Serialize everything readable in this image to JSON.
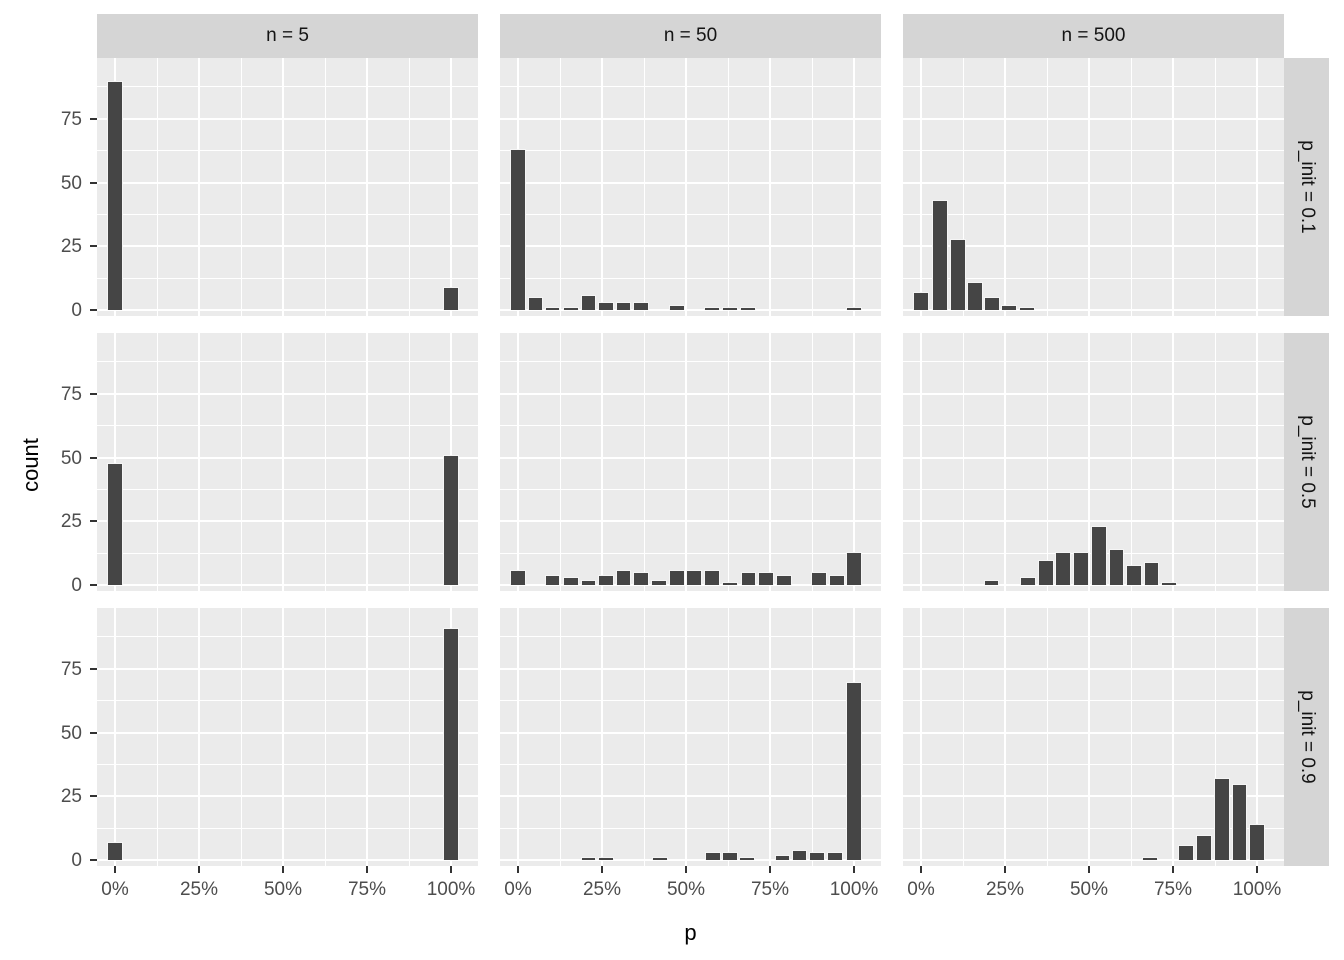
{
  "chart_data": {
    "type": "histogram",
    "description": "3x3 faceted histograms of simulated allele frequency p, faceted by sample size n (columns) and initial frequency p_init (rows)",
    "facet_grid": {
      "col_var": "n",
      "row_var": "p_init",
      "col_values": [
        "5",
        "50",
        "500"
      ],
      "row_values": [
        "0.1",
        "0.5",
        "0.9"
      ]
    },
    "col_strip_labels": [
      "n = 5",
      "n = 50",
      "n = 500"
    ],
    "row_strip_labels": [
      "p_init = 0.1",
      "p_init = 0.5",
      "p_init = 0.9"
    ],
    "xlabel": "p",
    "ylabel": "count",
    "x_tick_labels": [
      "0%",
      "25%",
      "50%",
      "75%",
      "100%"
    ],
    "x_tick_values": [
      0,
      25,
      50,
      75,
      100
    ],
    "y_tick_labels": [
      "0",
      "25",
      "50",
      "75"
    ],
    "y_tick_values": [
      0,
      25,
      50,
      75
    ],
    "x_minor_values": [
      12.5,
      37.5,
      62.5,
      87.5
    ],
    "y_minor_values": [
      12.5,
      37.5,
      62.5,
      87.5
    ],
    "xlim_pct": [
      -7,
      107
    ],
    "ylim_count": [
      0,
      96
    ],
    "bar_width_pct": 4.7,
    "bars_format": "[x_center_percent, count]",
    "panels": [
      {
        "row": 0,
        "col": 0,
        "n": "5",
        "p_init": "0.1",
        "bars": [
          [
            0,
            90
          ],
          [
            100,
            9
          ]
        ]
      },
      {
        "row": 0,
        "col": 1,
        "n": "50",
        "p_init": "0.1",
        "bars": [
          [
            0,
            63
          ],
          [
            5.2,
            5
          ],
          [
            10.3,
            1
          ],
          [
            15.8,
            1
          ],
          [
            21,
            6
          ],
          [
            26.2,
            3
          ],
          [
            31.4,
            3
          ],
          [
            36.7,
            3
          ],
          [
            47.4,
            2
          ],
          [
            57.8,
            1
          ],
          [
            63.2,
            1
          ],
          [
            68.5,
            1
          ],
          [
            100,
            1
          ]
        ]
      },
      {
        "row": 0,
        "col": 2,
        "n": "500",
        "p_init": "0.1",
        "bars": [
          [
            0,
            7
          ],
          [
            5.7,
            43
          ],
          [
            11,
            28
          ],
          [
            16.1,
            11
          ],
          [
            21.1,
            5
          ],
          [
            26.3,
            2
          ],
          [
            31.6,
            1
          ]
        ]
      },
      {
        "row": 1,
        "col": 0,
        "n": "5",
        "p_init": "0.5",
        "bars": [
          [
            0,
            48
          ],
          [
            100,
            51
          ]
        ]
      },
      {
        "row": 1,
        "col": 1,
        "n": "50",
        "p_init": "0.5",
        "bars": [
          [
            0,
            6
          ],
          [
            10.3,
            4
          ],
          [
            15.7,
            3
          ],
          [
            21,
            2
          ],
          [
            26.2,
            4
          ],
          [
            31.4,
            6
          ],
          [
            36.6,
            5
          ],
          [
            42,
            2
          ],
          [
            47.3,
            6
          ],
          [
            52.4,
            6
          ],
          [
            57.7,
            6
          ],
          [
            63.2,
            1
          ],
          [
            68.6,
            5
          ],
          [
            73.8,
            5
          ],
          [
            79.1,
            4
          ],
          [
            89.6,
            5
          ],
          [
            94.9,
            4
          ],
          [
            100,
            13
          ]
        ]
      },
      {
        "row": 1,
        "col": 2,
        "n": "500",
        "p_init": "0.5",
        "bars": [
          [
            21,
            2
          ],
          [
            31.9,
            3
          ],
          [
            37.1,
            10
          ],
          [
            42.3,
            13
          ],
          [
            47.6,
            13
          ],
          [
            52.9,
            23
          ],
          [
            58.2,
            14
          ],
          [
            63.4,
            8
          ],
          [
            68.6,
            9
          ],
          [
            73.9,
            1
          ]
        ]
      },
      {
        "row": 2,
        "col": 0,
        "n": "5",
        "p_init": "0.9",
        "bars": [
          [
            0,
            7
          ],
          [
            100,
            91
          ]
        ]
      },
      {
        "row": 2,
        "col": 1,
        "n": "50",
        "p_init": "0.9",
        "bars": [
          [
            21,
            1
          ],
          [
            26.2,
            1
          ],
          [
            42.2,
            1
          ],
          [
            58,
            3
          ],
          [
            63,
            3
          ],
          [
            68.2,
            1
          ],
          [
            78.7,
            2
          ],
          [
            83.8,
            4
          ],
          [
            89,
            3
          ],
          [
            94.3,
            3
          ],
          [
            100,
            70
          ]
        ]
      },
      {
        "row": 2,
        "col": 2,
        "n": "500",
        "p_init": "0.9",
        "bars": [
          [
            68.2,
            1
          ],
          [
            78.9,
            6
          ],
          [
            84.3,
            10
          ],
          [
            89.5,
            32
          ],
          [
            94.8,
            30
          ],
          [
            100,
            14
          ]
        ]
      }
    ]
  },
  "colors": {
    "panel_bg": "#EBEBEB",
    "strip_bg": "#D5D5D5",
    "bar_fill": "#454545",
    "bar_border": "#F5F5F5",
    "gridline": "#FFFFFF",
    "tick_text": "#4D4D4D",
    "axis_title_text": "#000000",
    "tick_mark": "#333333"
  }
}
